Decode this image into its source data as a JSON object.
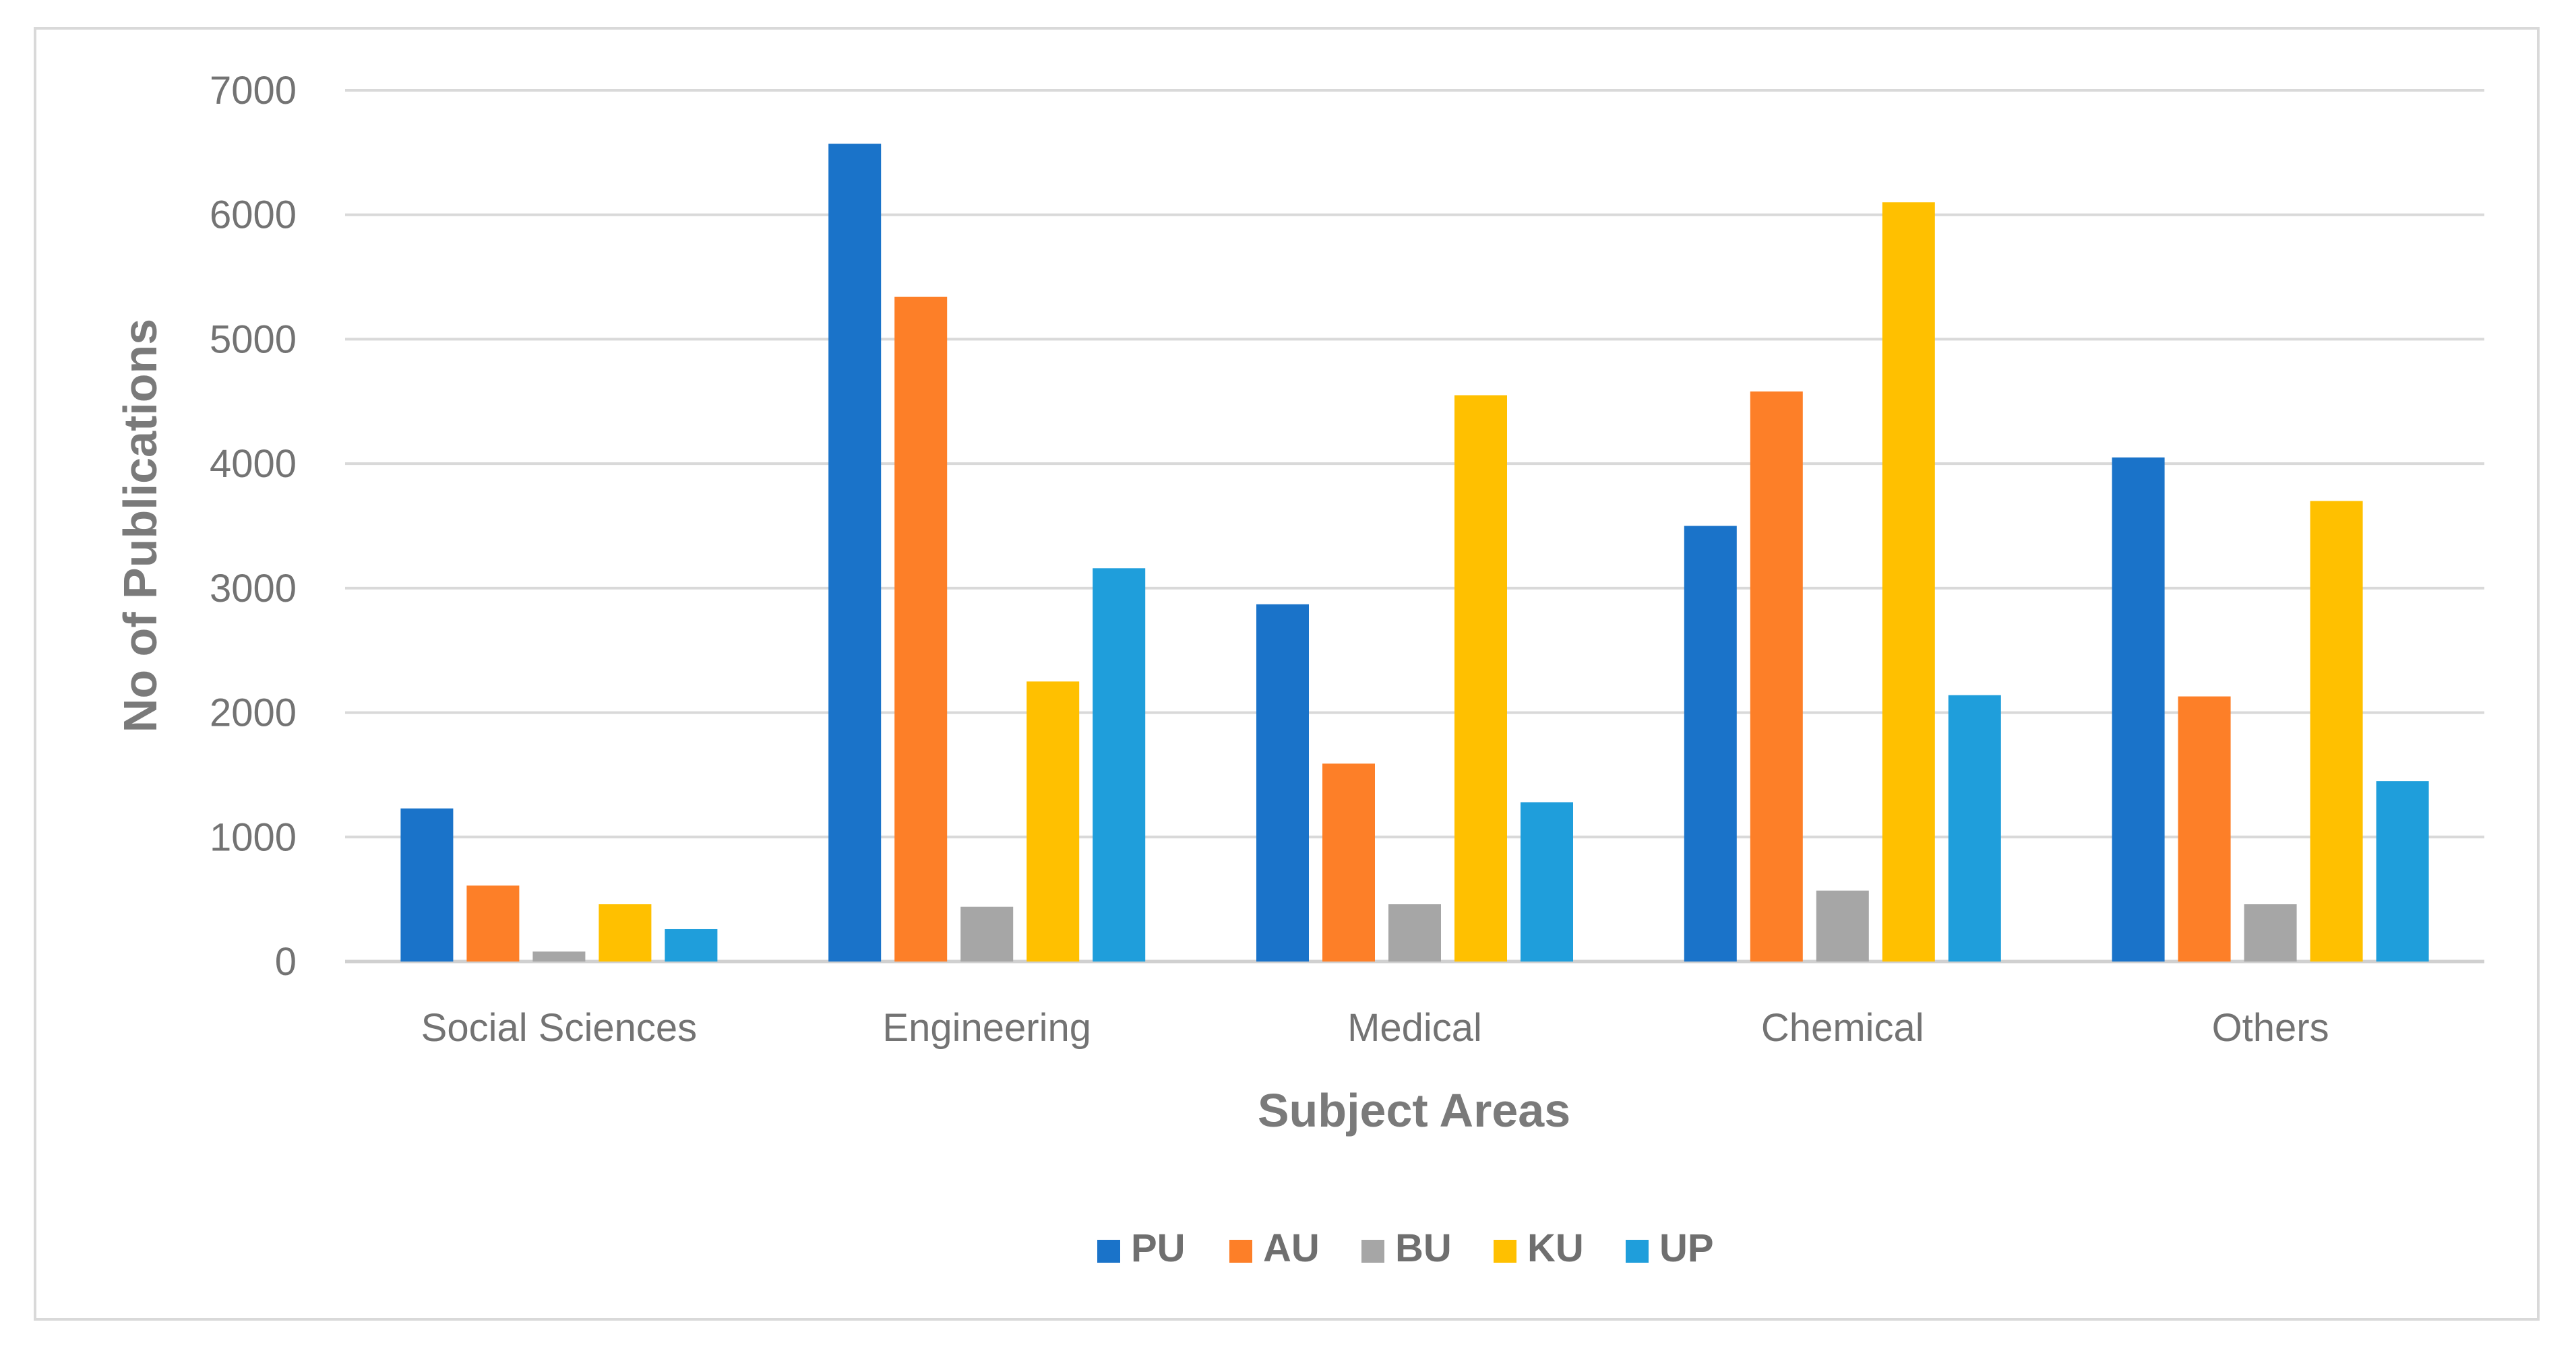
{
  "chart_data": {
    "type": "bar",
    "title": "",
    "xlabel": "Subject Areas",
    "ylabel": "No of Publications",
    "ylim": [
      0,
      7000
    ],
    "yticks": [
      0,
      1000,
      2000,
      3000,
      4000,
      5000,
      6000,
      7000
    ],
    "grid": true,
    "legend_position": "bottom",
    "categories": [
      "Social Sciences",
      "Engineering",
      "Medical",
      "Chemical",
      "Others"
    ],
    "series": [
      {
        "name": "PU",
        "color": "#1a73c9",
        "values": [
          1230,
          6570,
          2870,
          3500,
          4050
        ]
      },
      {
        "name": "AU",
        "color": "#fd7f28",
        "values": [
          610,
          5340,
          1590,
          4580,
          2130
        ]
      },
      {
        "name": "BU",
        "color": "#a6a6a6",
        "values": [
          80,
          440,
          460,
          570,
          460
        ]
      },
      {
        "name": "KU",
        "color": "#ffc000",
        "values": [
          460,
          2250,
          4550,
          6100,
          3700
        ]
      },
      {
        "name": "UP",
        "color": "#1f9edb",
        "values": [
          260,
          3160,
          1280,
          2140,
          1450
        ]
      }
    ]
  }
}
